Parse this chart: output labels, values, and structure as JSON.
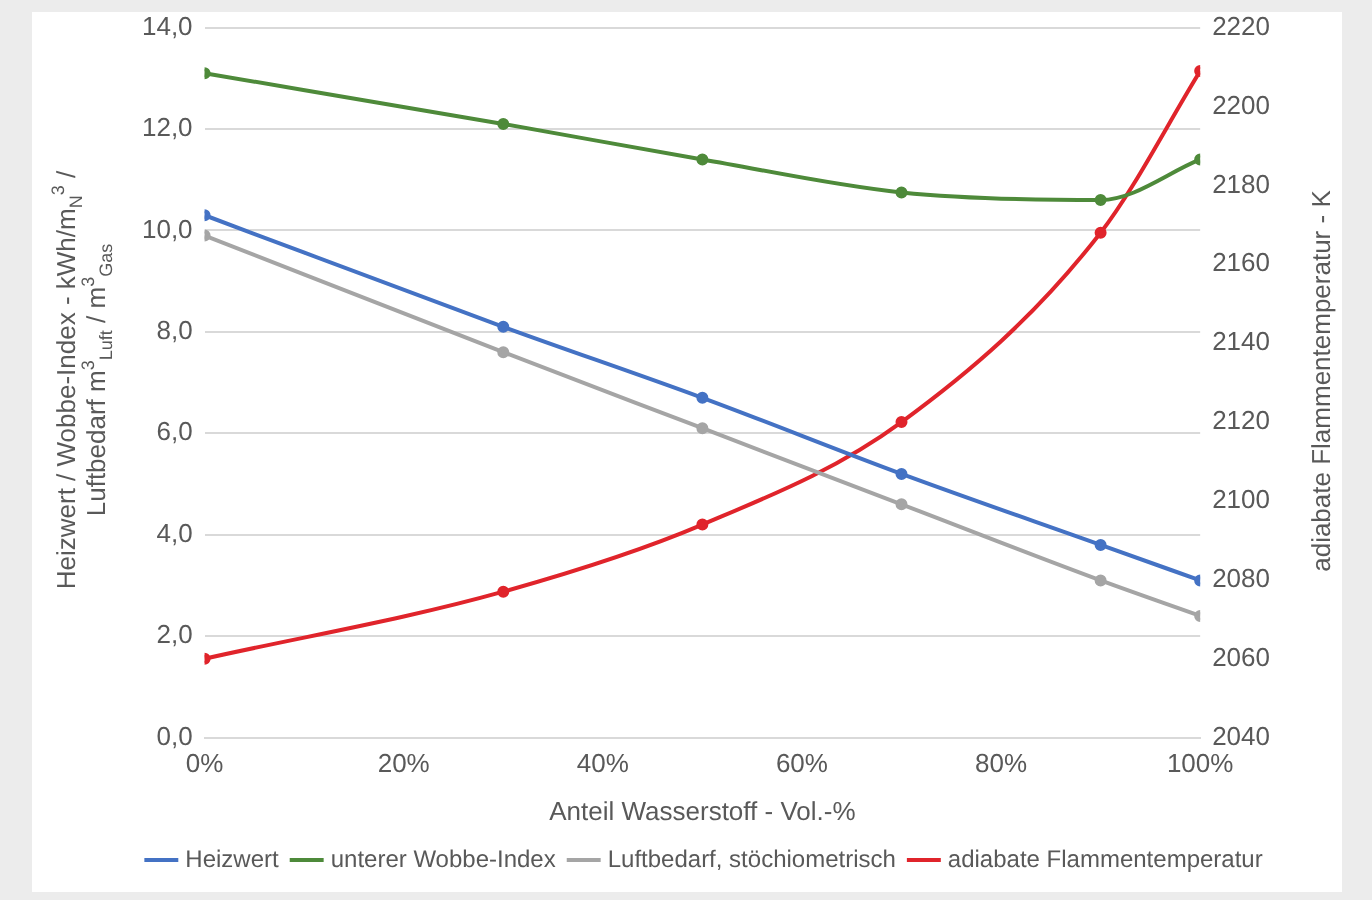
{
  "chart_data": {
    "type": "line",
    "xlabel": "Anteil Wasserstoff - Vol.-%",
    "ylabel": "Heizwert / Wobbe-Index - kWh/m$_{N}$$^{3}$ /\nLuftbedarf  m$^{3}$$_{Luft}$ / m$^{3}$$_{Gas}$",
    "y2label": "adiabate Flammentemperatur - K",
    "x": [
      0,
      30,
      50,
      70,
      90,
      100
    ],
    "xlim": [
      0,
      100
    ],
    "xticks": [
      {
        "value": 0,
        "label": "0%"
      },
      {
        "value": 20,
        "label": "20%"
      },
      {
        "value": 40,
        "label": "40%"
      },
      {
        "value": 60,
        "label": "60%"
      },
      {
        "value": 80,
        "label": "80%"
      },
      {
        "value": 100,
        "label": "100%"
      }
    ],
    "ylim": [
      0,
      14
    ],
    "yticks": [
      {
        "value": 0,
        "label": "0,0"
      },
      {
        "value": 2,
        "label": "2,0"
      },
      {
        "value": 4,
        "label": "4,0"
      },
      {
        "value": 6,
        "label": "6,0"
      },
      {
        "value": 8,
        "label": "8,0"
      },
      {
        "value": 10,
        "label": "10,0"
      },
      {
        "value": 12,
        "label": "12,0"
      },
      {
        "value": 14,
        "label": "14,0"
      }
    ],
    "y2lim": [
      2040,
      2220
    ],
    "y2ticks": [
      2040,
      2060,
      2080,
      2100,
      2120,
      2140,
      2160,
      2180,
      2200,
      2220
    ],
    "series": [
      {
        "name": "Heizwert",
        "color": "#4472c4",
        "values": [
          10.3,
          8.1,
          6.7,
          5.2,
          3.8,
          3.1
        ]
      },
      {
        "name": "unterer Wobbe-Index",
        "color": "#4e8a3a",
        "values": [
          13.1,
          12.1,
          11.4,
          10.75,
          10.6,
          11.4
        ]
      },
      {
        "name": "Luftbedarf, stöchiometrisch",
        "color": "#a5a5a5",
        "values": [
          9.9,
          7.6,
          6.1,
          4.6,
          3.1,
          2.4
        ]
      },
      {
        "name": "adiabate Flammentemperatur",
        "color": "#e0242b",
        "axis": "y2",
        "values": [
          2060,
          2077,
          2094,
          2120,
          2168,
          2209
        ]
      }
    ],
    "grid": "y",
    "legend": "bottom",
    "marker": "circle",
    "line_style": "solid"
  }
}
